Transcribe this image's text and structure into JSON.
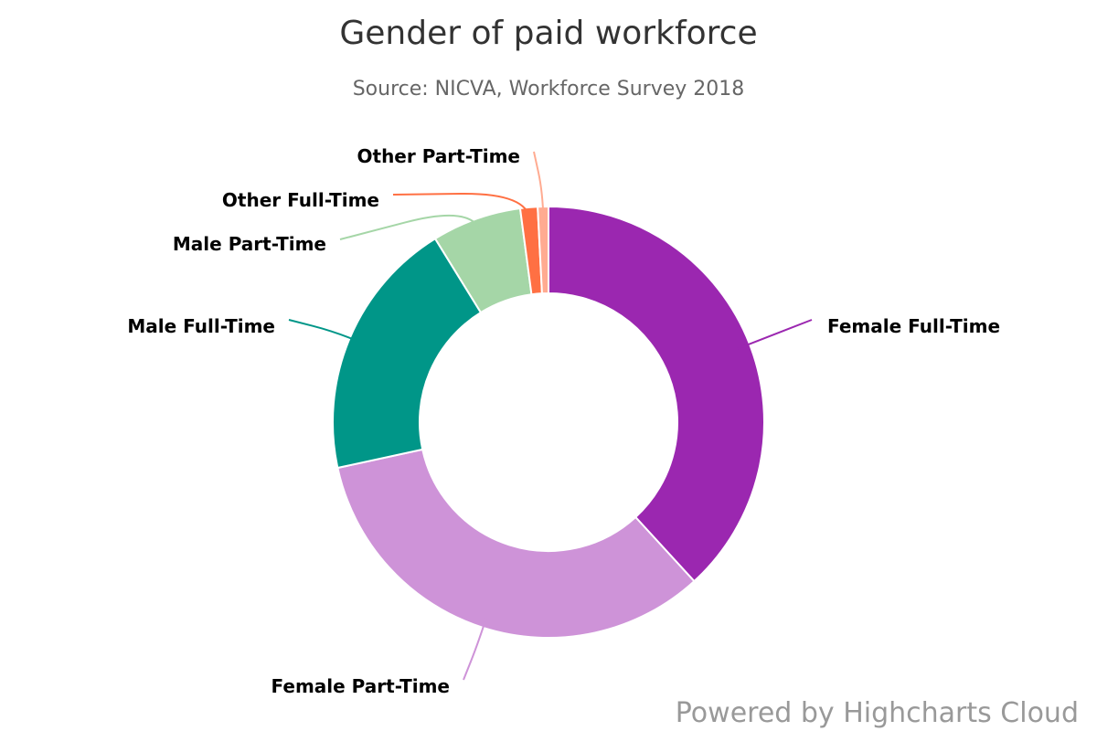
{
  "chart_data": {
    "type": "pie",
    "variant": "donut",
    "title": "Gender of paid workforce",
    "subtitle": "Source: NICVA, Workforce Survey 2018",
    "legend": "none",
    "credits": "Powered by Highcharts Cloud",
    "series": [
      {
        "data": [
          {
            "name": "Female Full-Time",
            "value": 38.2,
            "color": "#9b27b0"
          },
          {
            "name": "Female Part-Time",
            "value": 33.4,
            "color": "#ce93d8"
          },
          {
            "name": "Male Full-Time",
            "value": 19.6,
            "color": "#009688"
          },
          {
            "name": "Male Part-Time",
            "value": 6.7,
            "color": "#a5d6a7"
          },
          {
            "name": "Other Full-Time",
            "value": 1.3,
            "color": "#ff7043"
          },
          {
            "name": "Other Part-Time",
            "value": 0.8,
            "color": "#ffab91"
          }
        ]
      }
    ]
  }
}
